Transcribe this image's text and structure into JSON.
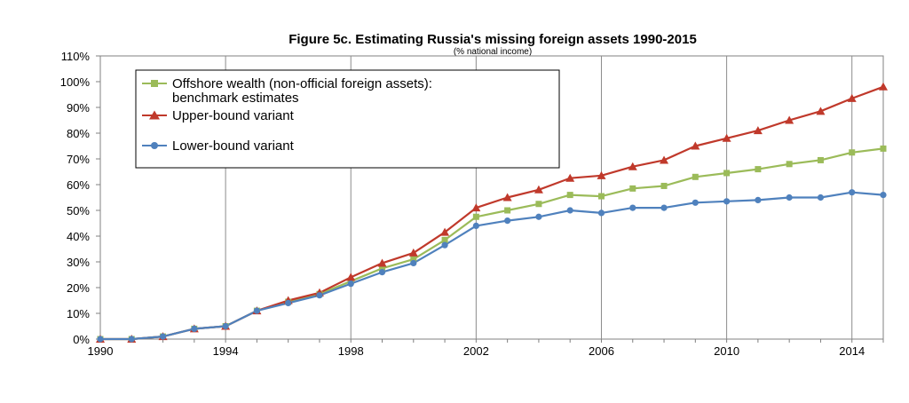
{
  "chart_data": {
    "type": "line",
    "title": "Figure 5c. Estimating Russia's missing foreign assets 1990-2015",
    "subtitle": "(% national income)",
    "xlabel": "",
    "ylabel": "",
    "x": [
      1990,
      1991,
      1992,
      1993,
      1994,
      1995,
      1996,
      1997,
      1998,
      1999,
      2000,
      2001,
      2002,
      2003,
      2004,
      2005,
      2006,
      2007,
      2008,
      2009,
      2010,
      2011,
      2012,
      2013,
      2014,
      2015
    ],
    "xlim": [
      1990,
      2015
    ],
    "ylim": [
      0,
      110
    ],
    "x_ticks": [
      1990,
      1994,
      1998,
      2002,
      2006,
      2010,
      2014
    ],
    "x_tick_labels": [
      "1990",
      "1994",
      "1998",
      "2002",
      "2006",
      "2010",
      "2014"
    ],
    "y_ticks": [
      0,
      10,
      20,
      30,
      40,
      50,
      60,
      70,
      80,
      90,
      100,
      110
    ],
    "y_tick_labels": [
      "0%",
      "10%",
      "20%",
      "30%",
      "40%",
      "50%",
      "60%",
      "70%",
      "80%",
      "90%",
      "100%",
      "110%"
    ],
    "grid": "vertical",
    "legend_position": "top-left",
    "series": [
      {
        "name": "Offshore wealth (non-official foreign assets):",
        "name_line2": "benchmark estimates",
        "color": "#9bbb59",
        "marker": "square",
        "values": [
          0,
          0,
          1,
          4,
          5,
          11,
          14.5,
          17.5,
          22.5,
          27.5,
          31,
          38.5,
          47.5,
          50,
          52.5,
          56,
          55.5,
          58.5,
          59.5,
          63,
          64.5,
          66,
          68,
          69.5,
          72.5,
          74
        ]
      },
      {
        "name": "Upper-bound variant",
        "color": "#c0392b",
        "marker": "triangle",
        "values": [
          0,
          0,
          1,
          4,
          5,
          11,
          15,
          18,
          24,
          29.5,
          33.5,
          41.5,
          51,
          55,
          58,
          62.5,
          63.5,
          67,
          69.5,
          75,
          78,
          81,
          85,
          88.5,
          93.5,
          98
        ]
      },
      {
        "name": "Lower-bound variant",
        "color": "#4f81bd",
        "marker": "circle",
        "values": [
          0,
          0,
          1,
          4,
          5,
          11,
          14,
          17,
          21.5,
          26,
          29.5,
          36.5,
          44,
          46,
          47.5,
          50,
          49,
          51,
          51,
          53,
          53.5,
          54,
          55,
          55,
          57,
          56
        ]
      }
    ]
  }
}
